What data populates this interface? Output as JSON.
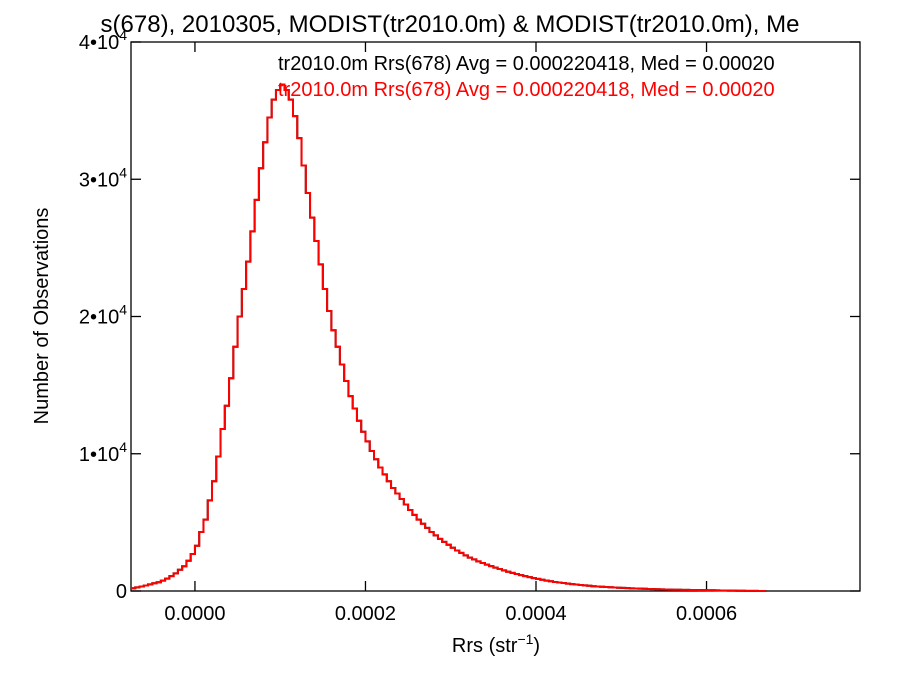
{
  "chart_data": {
    "type": "histogram",
    "title": "s(678), 2010305, MODIST(tr2010.0m) & MODIST(tr2010.0m), Me",
    "xlabel": {
      "base": "Rrs (str",
      "sup": "−1",
      "tail": ")"
    },
    "ylabel": "Number of Observations",
    "xlim": [
      -7.5e-05,
      0.00078
    ],
    "ylim": [
      0,
      40000
    ],
    "grid": false,
    "x_ticks": [
      {
        "value": 0.0,
        "label": "0.0000"
      },
      {
        "value": 0.0002,
        "label": "0.0002"
      },
      {
        "value": 0.0004,
        "label": "0.0004"
      },
      {
        "value": 0.0006,
        "label": "0.0006"
      }
    ],
    "y_ticks": [
      {
        "value": 0,
        "label": "0",
        "sup": ""
      },
      {
        "value": 10000,
        "label": "1•10",
        "sup": "4"
      },
      {
        "value": 20000,
        "label": "2•10",
        "sup": "4"
      },
      {
        "value": 30000,
        "label": "3•10",
        "sup": "4"
      },
      {
        "value": 40000,
        "label": "4•10",
        "sup": "4"
      }
    ],
    "annotations": [
      {
        "text": "tr2010.0m Rrs(678) Avg = 0.000220418, Med = 0.00020",
        "color": "#000000"
      },
      {
        "text": "tr2010.0m Rrs(678) Avg = 0.000220418, Med = 0.00020",
        "color": "#ff0000"
      }
    ],
    "series": [
      {
        "color_a": "#000000",
        "color_b": "#ff0000",
        "bin_width": 5e-06,
        "x_start": -7.5e-05,
        "counts": [
          200,
          260,
          330,
          400,
          480,
          560,
          640,
          760,
          900,
          1080,
          1280,
          1550,
          1800,
          2200,
          2700,
          3300,
          4300,
          5200,
          6600,
          8000,
          9800,
          11800,
          13500,
          15500,
          17800,
          20000,
          22000,
          24000,
          26200,
          28500,
          30800,
          32700,
          34500,
          35800,
          36500,
          36900,
          36500,
          35800,
          34600,
          33000,
          31000,
          29000,
          27200,
          25500,
          23800,
          22000,
          20400,
          19000,
          17800,
          16500,
          15300,
          14200,
          13300,
          12400,
          11600,
          10900,
          10200,
          9600,
          9000,
          8500,
          8000,
          7500,
          7100,
          6700,
          6300,
          5900,
          5550,
          5200,
          4900,
          4600,
          4300,
          4050,
          3800,
          3580,
          3370,
          3150,
          2950,
          2780,
          2600,
          2430,
          2300,
          2160,
          2040,
          1920,
          1810,
          1700,
          1600,
          1500,
          1400,
          1320,
          1240,
          1160,
          1080,
          1010,
          940,
          880,
          820,
          760,
          710,
          660,
          620,
          580,
          540,
          500,
          470,
          440,
          410,
          380,
          350,
          330,
          310,
          290,
          270,
          255,
          240,
          225,
          210,
          195,
          180,
          170,
          160,
          150,
          140,
          130,
          120,
          110,
          100,
          95,
          90,
          85,
          80,
          75,
          70,
          65,
          60,
          55,
          50,
          45,
          40,
          35,
          30,
          25,
          20,
          15,
          10,
          8,
          6,
          4,
          2
        ]
      }
    ]
  }
}
